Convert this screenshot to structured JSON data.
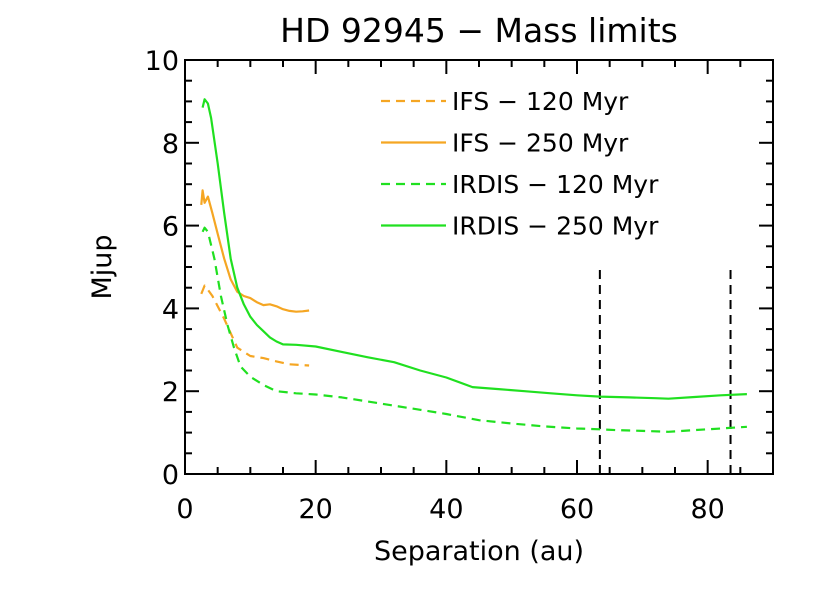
{
  "chart_data": {
    "type": "line",
    "title": "HD 92945 − Mass limits",
    "xlabel": "Separation (au)",
    "ylabel": "Mjup",
    "xlim": [
      0,
      90
    ],
    "ylim": [
      0,
      10
    ],
    "xticks": [
      0,
      20,
      40,
      60,
      80
    ],
    "yticks": [
      0,
      2,
      4,
      6,
      8,
      10
    ],
    "xtick_labels": [
      "0",
      "20",
      "40",
      "60",
      "80"
    ],
    "ytick_labels": [
      "0",
      "2",
      "4",
      "6",
      "8",
      "10"
    ],
    "legend_position": "top-right",
    "series": [
      {
        "name": "IFS − 120 Myr",
        "color": "#f5a623",
        "dash": "dashed",
        "x": [
          2.5,
          3.0,
          3.5,
          4.2,
          5.0,
          6.0,
          7.0,
          8.0,
          10.0,
          12.0,
          14.0,
          16.0,
          19.0
        ],
        "y": [
          4.35,
          4.55,
          4.45,
          4.3,
          4.05,
          3.75,
          3.4,
          3.05,
          2.85,
          2.8,
          2.72,
          2.65,
          2.62
        ]
      },
      {
        "name": "IFS − 250 Myr",
        "color": "#f5a623",
        "dash": "solid",
        "x": [
          2.5,
          2.7,
          3.0,
          3.5,
          4.2,
          5.0,
          6.0,
          7.0,
          8.0,
          9.0,
          10.0,
          11.0,
          12.0,
          13.0,
          14.0,
          15.0,
          16.0,
          17.0,
          18.0,
          19.0
        ],
        "y": [
          6.5,
          6.85,
          6.55,
          6.7,
          6.3,
          5.8,
          5.2,
          4.7,
          4.4,
          4.3,
          4.25,
          4.15,
          4.08,
          4.1,
          4.05,
          3.98,
          3.94,
          3.92,
          3.93,
          3.95
        ]
      },
      {
        "name": "IRDIS − 120 Myr",
        "color": "#20e020",
        "dash": "dashed",
        "x": [
          2.7,
          3.0,
          3.5,
          4.5,
          5.5,
          6.5,
          7.5,
          8.5,
          10.0,
          12.0,
          14.0,
          17.0,
          20.0,
          24.0,
          30.0,
          36.0,
          40.0,
          45.0,
          50.0,
          55.0,
          60.0,
          63.5,
          66.0,
          70.0,
          74.0,
          78.0,
          82.0,
          86.0
        ],
        "y": [
          5.85,
          5.95,
          5.85,
          5.2,
          4.3,
          3.6,
          3.05,
          2.6,
          2.35,
          2.15,
          2.0,
          1.95,
          1.92,
          1.85,
          1.7,
          1.55,
          1.45,
          1.3,
          1.22,
          1.15,
          1.1,
          1.08,
          1.06,
          1.04,
          1.02,
          1.06,
          1.1,
          1.14
        ]
      },
      {
        "name": "IRDIS − 250 Myr",
        "color": "#20e020",
        "dash": "solid",
        "x": [
          2.7,
          3.0,
          3.5,
          4.0,
          5.0,
          6.0,
          7.0,
          8.0,
          9.0,
          10.0,
          11.0,
          12.0,
          13.0,
          14.0,
          15.0,
          17.0,
          20.0,
          24.0,
          28.0,
          32.0,
          36.0,
          40.0,
          44.0,
          48.0,
          52.0,
          56.0,
          60.0,
          63.5,
          68.0,
          72.0,
          74.0,
          78.0,
          82.0,
          86.0
        ],
        "y": [
          8.85,
          9.05,
          8.95,
          8.6,
          7.5,
          6.3,
          5.2,
          4.5,
          4.1,
          3.8,
          3.6,
          3.45,
          3.3,
          3.2,
          3.13,
          3.12,
          3.08,
          2.95,
          2.82,
          2.7,
          2.5,
          2.33,
          2.1,
          2.05,
          2.0,
          1.95,
          1.9,
          1.87,
          1.85,
          1.83,
          1.82,
          1.86,
          1.9,
          1.93
        ]
      }
    ],
    "vlines": [
      {
        "x": 63.5,
        "ymin": 0,
        "ymax": 5.0,
        "dash": "dashed",
        "color": "#000000"
      },
      {
        "x": 83.5,
        "ymin": 0,
        "ymax": 5.0,
        "dash": "dashed",
        "color": "#000000"
      }
    ]
  }
}
